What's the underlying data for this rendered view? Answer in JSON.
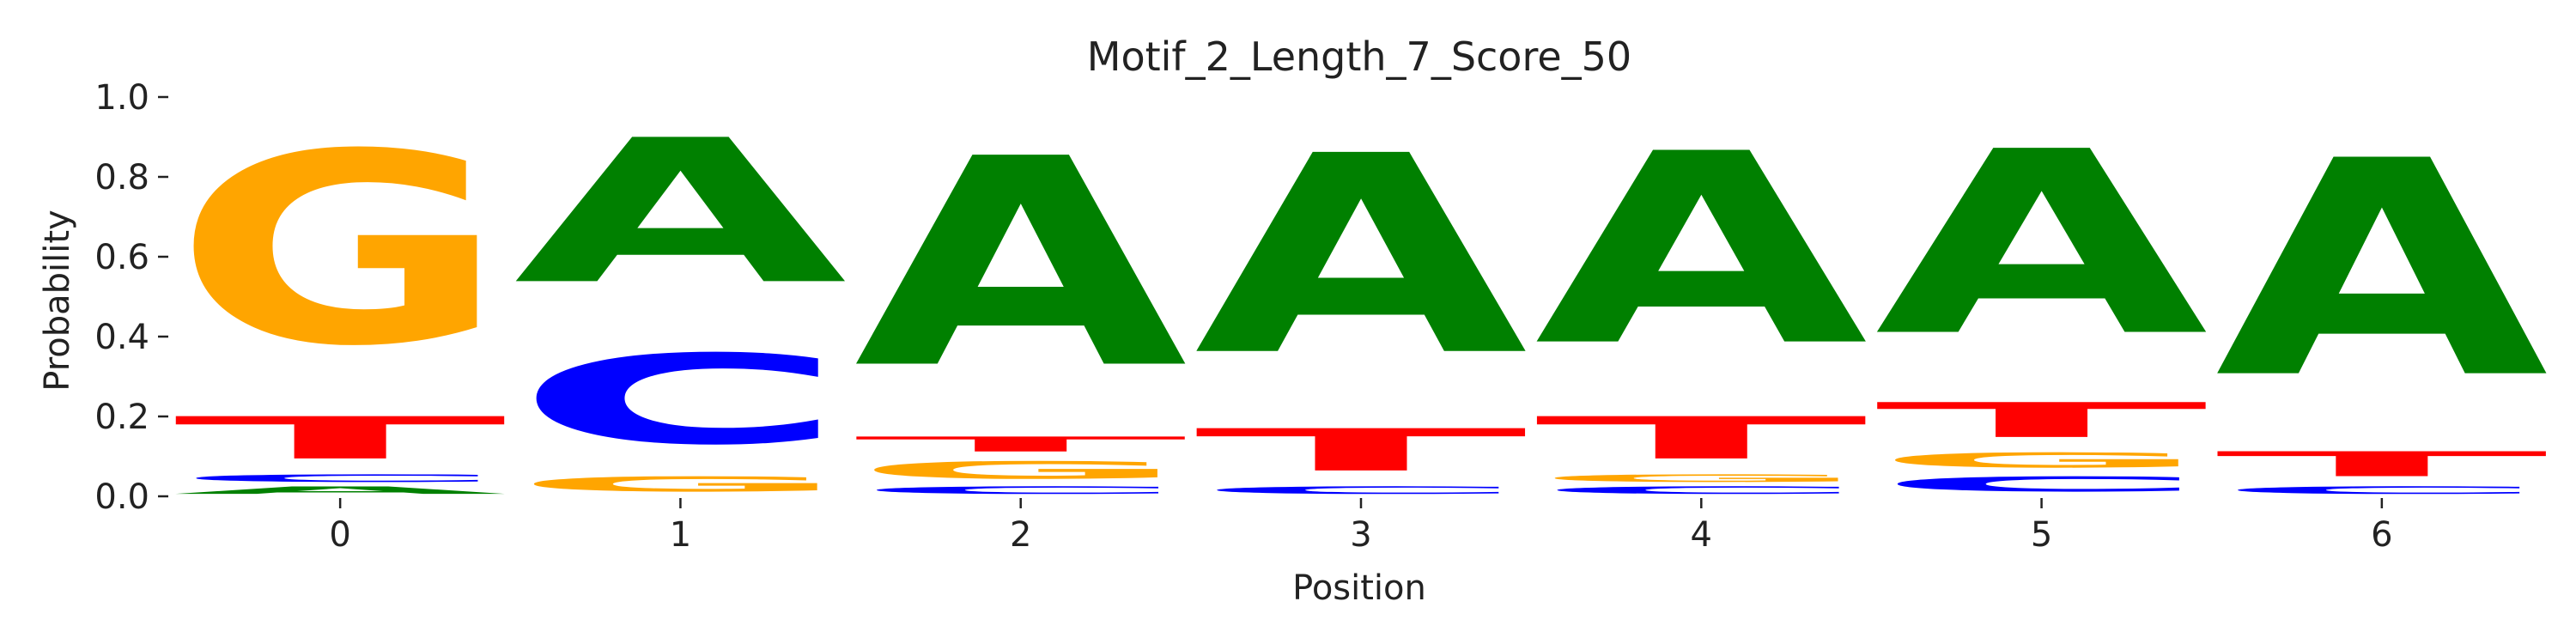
{
  "chart_data": {
    "type": "sequence-logo",
    "title": "Motif_2_Length_7_Score_50",
    "xlabel": "Position",
    "ylabel": "Probability",
    "ylim": [
      0,
      1.0
    ],
    "yticks": [
      "0.0",
      "0.2",
      "0.4",
      "0.6",
      "0.8",
      "1.0"
    ],
    "positions": [
      "0",
      "1",
      "2",
      "3",
      "4",
      "5",
      "6"
    ],
    "letter_colors": {
      "A": "#008000",
      "C": "#0000ff",
      "G": "#ffa500",
      "T": "#ff0000"
    },
    "stacks": [
      [
        {
          "base": "A",
          "value": 0.03
        },
        {
          "base": "C",
          "value": 0.03
        },
        {
          "base": "T",
          "value": 0.17
        },
        {
          "base": "G",
          "value": 0.77
        }
      ],
      [
        {
          "base": "G",
          "value": 0.06
        },
        {
          "base": "C",
          "value": 0.36
        },
        {
          "base": "A",
          "value": 0.58
        }
      ],
      [
        {
          "base": "C",
          "value": 0.03
        },
        {
          "base": "G",
          "value": 0.07
        },
        {
          "base": "T",
          "value": 0.06
        },
        {
          "base": "A",
          "value": 0.84
        }
      ],
      [
        {
          "base": "C",
          "value": 0.03
        },
        {
          "base": "T",
          "value": 0.17
        },
        {
          "base": "A",
          "value": 0.8
        }
      ],
      [
        {
          "base": "C",
          "value": 0.03
        },
        {
          "base": "G",
          "value": 0.03
        },
        {
          "base": "T",
          "value": 0.17
        },
        {
          "base": "A",
          "value": 0.77
        }
      ],
      [
        {
          "base": "C",
          "value": 0.06
        },
        {
          "base": "G",
          "value": 0.06
        },
        {
          "base": "T",
          "value": 0.14
        },
        {
          "base": "A",
          "value": 0.74
        }
      ],
      [
        {
          "base": "C",
          "value": 0.03
        },
        {
          "base": "T",
          "value": 0.1
        },
        {
          "base": "A",
          "value": 0.87
        }
      ]
    ]
  }
}
